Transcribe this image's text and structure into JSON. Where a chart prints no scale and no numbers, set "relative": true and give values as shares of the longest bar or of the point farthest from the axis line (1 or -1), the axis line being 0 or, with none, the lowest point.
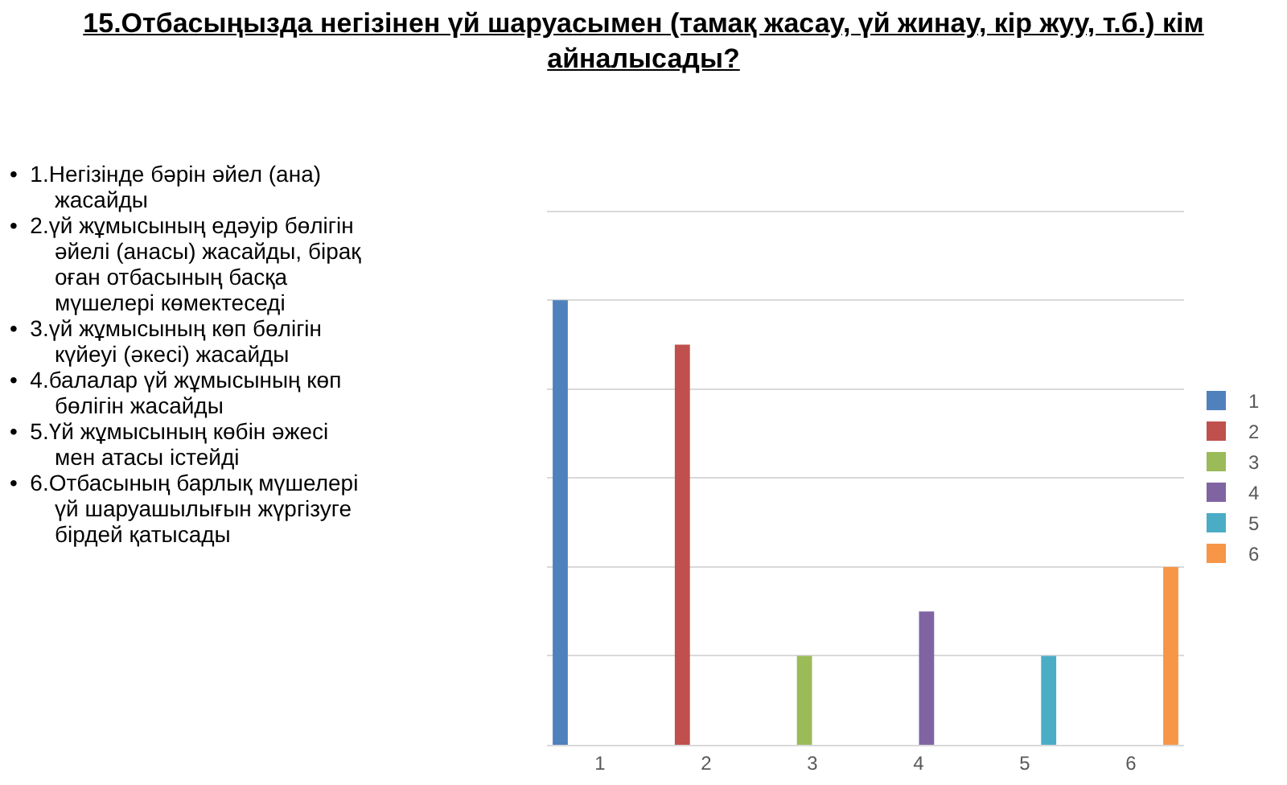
{
  "chart_data": {
    "type": "bar",
    "title": "15.Отбасыңызда негізінен үй шаруасымен (тамақ жасау, үй жинау, кір жуу, т.б.) кім айналысады?",
    "annotations": [
      "•  1.Негізінде бәрін әйел (ана) жасайды",
      "•  2.үй жұмысының едәуір бөлігін әйелі (анасы) жасайды, бірақ оған отбасының басқа мүшелері көмектеседі",
      "•  3.үй жұмысының көп бөлігін күйеуі (әкесі) жасайды",
      "•  4.балалар үй жұмысының көп бөлігін жасайды",
      "•  5.Үй жұмысының көбін әжесі мен атасы істейді",
      "•  6.Отбасының барлық мүшелері үй шаруашылығын жүргізуге бірдей қатысады"
    ],
    "categories": [
      "1",
      "2",
      "3",
      "4",
      "5",
      "6"
    ],
    "relative": true,
    "grid": "y",
    "legend": "right",
    "series": [
      {
        "name": "1",
        "color": "#4f81bd",
        "values": [
          1,
          null,
          null,
          null,
          null,
          null
        ]
      },
      {
        "name": "2",
        "color": "#c0504d",
        "values": [
          null,
          0.9,
          null,
          null,
          null,
          null
        ]
      },
      {
        "name": "3",
        "color": "#9bbb59",
        "values": [
          null,
          null,
          0.2,
          null,
          null,
          null
        ]
      },
      {
        "name": "4",
        "color": "#8064a2",
        "values": [
          null,
          null,
          null,
          0.3,
          null,
          null
        ]
      },
      {
        "name": "5",
        "color": "#4bacc6",
        "values": [
          null,
          null,
          null,
          null,
          0.2,
          null
        ]
      },
      {
        "name": "6",
        "color": "#f79646",
        "values": [
          null,
          null,
          null,
          null,
          null,
          0.4
        ]
      }
    ]
  }
}
